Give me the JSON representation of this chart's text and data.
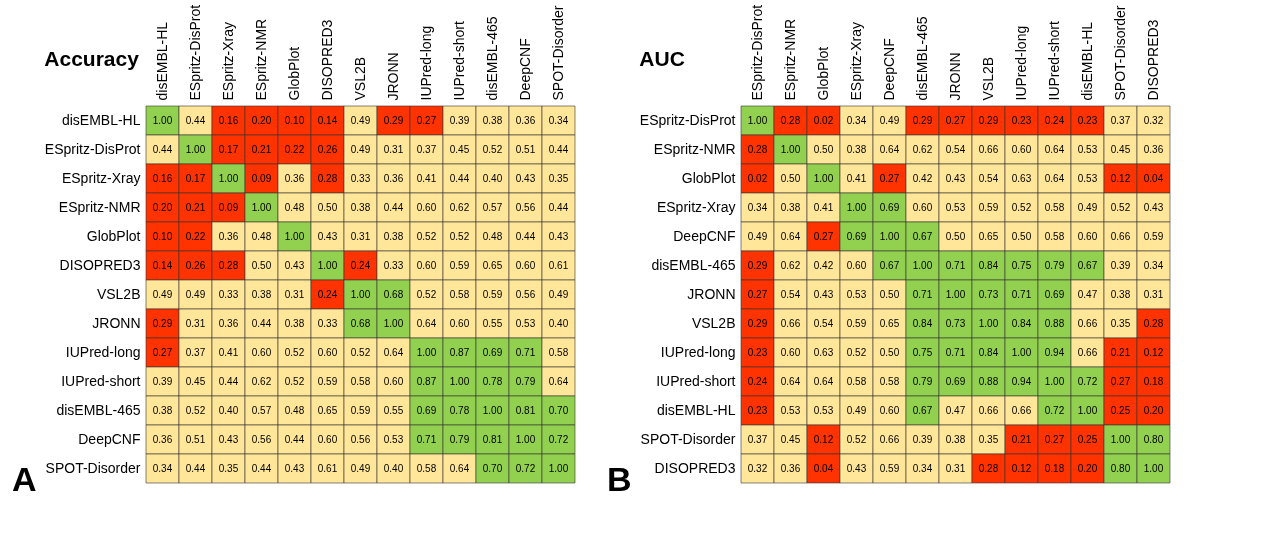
{
  "chart_data": [
    {
      "type": "heatmap",
      "title": "Accuracy",
      "annotations": [
        "A"
      ],
      "colors": [
        "#ff3300",
        "#ffe699",
        "#92d050"
      ],
      "categories": [
        "disEMBL-HL",
        "ESpritz-DisProt",
        "ESpritz-Xray",
        "ESpritz-NMR",
        "GlobPlot",
        "DISOPRED3",
        "VSL2B",
        "JRONN",
        "IUPred-long",
        "IUPred-short",
        "disEMBL-465",
        "DeepCNF",
        "SPOT-Disorder"
      ],
      "y_categories": [
        "disEMBL-HL",
        "ESpritz-DisProt",
        "ESpritz-Xray",
        "ESpritz-NMR",
        "GlobPlot",
        "DISOPRED3",
        "VSL2B",
        "JRONN",
        "IUPred-long",
        "IUPred-short",
        "disEMBL-465",
        "DeepCNF",
        "SPOT-Disorder"
      ],
      "cells": [
        [
          1.0,
          0.44,
          0.16,
          0.2,
          0.1,
          0.14,
          0.49,
          0.29,
          0.27,
          0.39,
          0.38,
          0.36,
          0.34
        ],
        [
          0.44,
          1.0,
          0.17,
          0.21,
          0.22,
          0.26,
          0.49,
          0.31,
          0.37,
          0.45,
          0.52,
          0.51,
          0.44
        ],
        [
          0.16,
          0.17,
          1.0,
          0.09,
          0.36,
          0.28,
          0.33,
          0.36,
          0.41,
          0.44,
          0.4,
          0.43,
          0.35
        ],
        [
          0.2,
          0.21,
          0.09,
          1.0,
          0.48,
          0.5,
          0.38,
          0.44,
          0.6,
          0.62,
          0.57,
          0.56,
          0.44
        ],
        [
          0.1,
          0.22,
          0.36,
          0.48,
          1.0,
          0.43,
          0.31,
          0.38,
          0.52,
          0.52,
          0.48,
          0.44,
          0.43
        ],
        [
          0.14,
          0.26,
          0.28,
          0.5,
          0.43,
          1.0,
          0.24,
          0.33,
          0.6,
          0.59,
          0.65,
          0.6,
          0.61
        ],
        [
          0.49,
          0.49,
          0.33,
          0.38,
          0.31,
          0.24,
          1.0,
          0.68,
          0.52,
          0.58,
          0.59,
          0.56,
          0.49
        ],
        [
          0.29,
          0.31,
          0.36,
          0.44,
          0.38,
          0.33,
          0.68,
          1.0,
          0.64,
          0.6,
          0.55,
          0.53,
          0.4
        ],
        [
          0.27,
          0.37,
          0.41,
          0.6,
          0.52,
          0.6,
          0.52,
          0.64,
          1.0,
          0.87,
          0.69,
          0.71,
          0.58
        ],
        [
          0.39,
          0.45,
          0.44,
          0.62,
          0.52,
          0.59,
          0.58,
          0.6,
          0.87,
          1.0,
          0.78,
          0.79,
          0.64
        ],
        [
          0.38,
          0.52,
          0.4,
          0.57,
          0.48,
          0.65,
          0.59,
          0.55,
          0.69,
          0.78,
          1.0,
          0.81,
          0.7
        ],
        [
          0.36,
          0.51,
          0.43,
          0.56,
          0.44,
          0.6,
          0.56,
          0.53,
          0.71,
          0.79,
          0.81,
          1.0,
          0.72
        ],
        [
          0.34,
          0.44,
          0.35,
          0.44,
          0.43,
          0.61,
          0.49,
          0.4,
          0.58,
          0.64,
          0.7,
          0.72,
          1.0
        ]
      ],
      "cell_labels": [
        [
          "1.00",
          "0.44",
          "0.16",
          "0.20",
          "0.10",
          "0.14",
          "0.49",
          "0.29",
          "0.27",
          "0.39",
          "0.38",
          "0.36",
          "0.34"
        ],
        [
          "0.44",
          "1.00",
          "0.17",
          "0.21",
          "0.22",
          "0.26",
          "0.49",
          "0.31",
          "0.37",
          "0.45",
          "0.52",
          "0.51",
          "0.44"
        ],
        [
          "0.16",
          "0.17",
          "1.00",
          "0.09",
          "0.36",
          "0.28",
          "0.33",
          "0.36",
          "0.41",
          "0.44",
          "0.40",
          "0.43",
          "0.35"
        ],
        [
          "0.20",
          "0.21",
          "0.09",
          "1.00",
          "0.48",
          "0.50",
          "0.38",
          "0.44",
          "0.60",
          "0.62",
          "0.57",
          "0.56",
          "0.44"
        ],
        [
          "0.10",
          "0.22",
          "0.36",
          "0.48",
          "1.00",
          "0.43",
          "0.31",
          "0.38",
          "0.52",
          "0.52",
          "0.48",
          "0.44",
          "0.43"
        ],
        [
          "0.14",
          "0.26",
          "0.28",
          "0.50",
          "0.43",
          "1.00",
          "0.24",
          "0.33",
          "0.60",
          "0.59",
          "0.65",
          "0.60",
          "0.61"
        ],
        [
          "0.49",
          "0.49",
          "0.33",
          "0.38",
          "0.31",
          "0.24",
          "1.00",
          "0.68",
          "0.52",
          "0.58",
          "0.59",
          "0.56",
          "0.49"
        ],
        [
          "0.29",
          "0.31",
          "0.36",
          "0.44",
          "0.38",
          "0.33",
          "0.68",
          "1.00",
          "0.64",
          "0.60",
          "0.55",
          "0.53",
          "0.40"
        ],
        [
          "0.27",
          "0.37",
          "0.41",
          "0.60",
          "0.52",
          "0.60",
          "0.52",
          "0.64",
          "1.00",
          "0.87",
          "0.69",
          "0.71",
          "0.58"
        ],
        [
          "0.39",
          "0.45",
          "0.44",
          "0.62",
          "0.52",
          "0.59",
          "0.58",
          "0.60",
          "0.87",
          "1.00",
          "0.78",
          "0.79",
          "0.64"
        ],
        [
          "0.38",
          "0.52",
          "0.40",
          "0.57",
          "0.48",
          "0.65",
          "0.59",
          "0.55",
          "0.69",
          "0.78",
          "1.00",
          "0.81",
          "0.70"
        ],
        [
          "0.36",
          "0.51",
          "0.43",
          "0.56",
          "0.44",
          "0.60",
          "0.56",
          "0.53",
          "0.71",
          "0.79",
          "0.81",
          "1.00",
          "0.72"
        ],
        [
          "0.34",
          "0.44",
          "0.35",
          "0.44",
          "0.43",
          "0.61",
          "0.49",
          "0.40",
          "0.58",
          "0.64",
          "0.70",
          "0.72",
          "1.00"
        ]
      ]
    },
    {
      "type": "heatmap",
      "title": "AUC",
      "annotations": [
        "B"
      ],
      "colors": [
        "#ff3300",
        "#ffe699",
        "#92d050"
      ],
      "categories": [
        "ESpritz-DisProt",
        "ESpritz-NMR",
        "GlobPlot",
        "ESpritz-Xray",
        "DeepCNF",
        "disEMBL-465",
        "JRONN",
        "VSL2B",
        "IUPred-long",
        "IUPred-short",
        "disEMBL-HL",
        "SPOT-Disorder",
        "DISOPRED3"
      ],
      "y_categories": [
        "ESpritz-DisProt",
        "ESpritz-NMR",
        "GlobPlot",
        "ESpritz-Xray",
        "DeepCNF",
        "disEMBL-465",
        "JRONN",
        "VSL2B",
        "IUPred-long",
        "IUPred-short",
        "disEMBL-HL",
        "SPOT-Disorder",
        "DISOPRED3"
      ],
      "cells": [
        [
          1.0,
          0.28,
          0.02,
          0.34,
          0.49,
          0.29,
          0.27,
          0.29,
          0.23,
          0.24,
          0.23,
          0.37,
          0.32
        ],
        [
          0.28,
          1.0,
          0.5,
          0.38,
          0.64,
          0.62,
          0.54,
          0.66,
          0.6,
          0.64,
          0.53,
          0.45,
          0.36
        ],
        [
          0.02,
          0.5,
          1.0,
          0.41,
          0.27,
          0.42,
          0.43,
          0.54,
          0.63,
          0.64,
          0.53,
          0.12,
          0.04
        ],
        [
          0.34,
          0.38,
          0.41,
          1.0,
          0.69,
          0.6,
          0.53,
          0.59,
          0.52,
          0.58,
          0.49,
          0.52,
          0.43
        ],
        [
          0.49,
          0.64,
          0.27,
          0.69,
          1.0,
          0.67,
          0.5,
          0.65,
          0.5,
          0.58,
          0.6,
          0.66,
          0.59
        ],
        [
          0.29,
          0.62,
          0.42,
          0.6,
          0.67,
          1.0,
          0.71,
          0.84,
          0.75,
          0.79,
          0.67,
          0.39,
          0.34
        ],
        [
          0.27,
          0.54,
          0.43,
          0.53,
          0.5,
          0.71,
          1.0,
          0.73,
          0.71,
          0.69,
          0.47,
          0.38,
          0.31
        ],
        [
          0.29,
          0.66,
          0.54,
          0.59,
          0.65,
          0.84,
          0.73,
          1.0,
          0.84,
          0.88,
          0.66,
          0.35,
          0.28
        ],
        [
          0.23,
          0.6,
          0.63,
          0.52,
          0.5,
          0.75,
          0.71,
          0.84,
          1.0,
          0.94,
          0.66,
          0.21,
          0.12
        ],
        [
          0.24,
          0.64,
          0.64,
          0.58,
          0.58,
          0.79,
          0.69,
          0.88,
          0.94,
          1.0,
          0.72,
          0.27,
          0.18
        ],
        [
          0.23,
          0.53,
          0.53,
          0.49,
          0.6,
          0.67,
          0.47,
          0.66,
          0.66,
          0.72,
          1.0,
          0.25,
          0.2
        ],
        [
          0.37,
          0.45,
          0.12,
          0.52,
          0.66,
          0.39,
          0.38,
          0.35,
          0.21,
          0.27,
          0.25,
          1.0,
          0.8
        ],
        [
          0.32,
          0.36,
          0.04,
          0.43,
          0.59,
          0.34,
          0.31,
          0.28,
          0.12,
          0.18,
          0.2,
          0.8,
          1.0
        ]
      ],
      "cell_labels": [
        [
          "1.00",
          "0.28",
          "0.02",
          "0.34",
          "0.49",
          "0.29",
          "0.27",
          "0.29",
          "0.23",
          "0.24",
          "0.23",
          "0.37",
          "0.32"
        ],
        [
          "0.28",
          "1.00",
          "0.50",
          "0.38",
          "0.64",
          "0.62",
          "0.54",
          "0.66",
          "0.60",
          "0.64",
          "0.53",
          "0.45",
          "0.36"
        ],
        [
          "0.02",
          "0.50",
          "1.00",
          "0.41",
          "0.27",
          "0.42",
          "0.43",
          "0.54",
          "0.63",
          "0.64",
          "0.53",
          "0.12",
          "0.04"
        ],
        [
          "0.34",
          "0.38",
          "0.41",
          "1.00",
          "0.69",
          "0.60",
          "0.53",
          "0.59",
          "0.52",
          "0.58",
          "0.49",
          "0.52",
          "0.43"
        ],
        [
          "0.49",
          "0.64",
          "0.27",
          "0.69",
          "1.00",
          "0.67",
          "0.50",
          "0.65",
          "0.50",
          "0.58",
          "0.60",
          "0.66",
          "0.59"
        ],
        [
          "0.29",
          "0.62",
          "0.42",
          "0.60",
          "0.67",
          "1.00",
          "0.71",
          "0.84",
          "0.75",
          "0.79",
          "0.67",
          "0.39",
          "0.34"
        ],
        [
          "0.27",
          "0.54",
          "0.43",
          "0.53",
          "0.50",
          "0.71",
          "1.00",
          "0.73",
          "0.71",
          "0.69",
          "0.47",
          "0.38",
          "0.31"
        ],
        [
          "0.29",
          "0.66",
          "0.54",
          "0.59",
          "0.65",
          "0.84",
          "0.73",
          "1.00",
          "0.84",
          "0.88",
          "0.66",
          "0.35",
          "0.28"
        ],
        [
          "0.23",
          "0.60",
          "0.63",
          "0.52",
          "0.50",
          "0.75",
          "0.71",
          "0.84",
          "1.00",
          "0.94",
          "0.66",
          "0.21",
          "0.12"
        ],
        [
          "0.24",
          "0.64",
          "0.64",
          "0.58",
          "0.58",
          "0.79",
          "0.69",
          "0.88",
          "0.94",
          "1.00",
          "0.72",
          "0.27",
          "0.18"
        ],
        [
          "0.23",
          "0.53",
          "0.53",
          "0.49",
          "0.60",
          "0.67",
          "0.47",
          "0.66",
          "0.66",
          "0.72",
          "1.00",
          "0.25",
          "0.20"
        ],
        [
          "0.37",
          "0.45",
          "0.12",
          "0.52",
          "0.66",
          "0.39",
          "0.38",
          "0.35",
          "0.21",
          "0.27",
          "0.25",
          "1.00",
          "0.80"
        ],
        [
          "0.32",
          "0.36",
          "0.04",
          "0.43",
          "0.59",
          "0.34",
          "0.31",
          "0.28",
          "0.12",
          "0.18",
          "0.20",
          "0.80",
          "1.00"
        ]
      ]
    }
  ]
}
